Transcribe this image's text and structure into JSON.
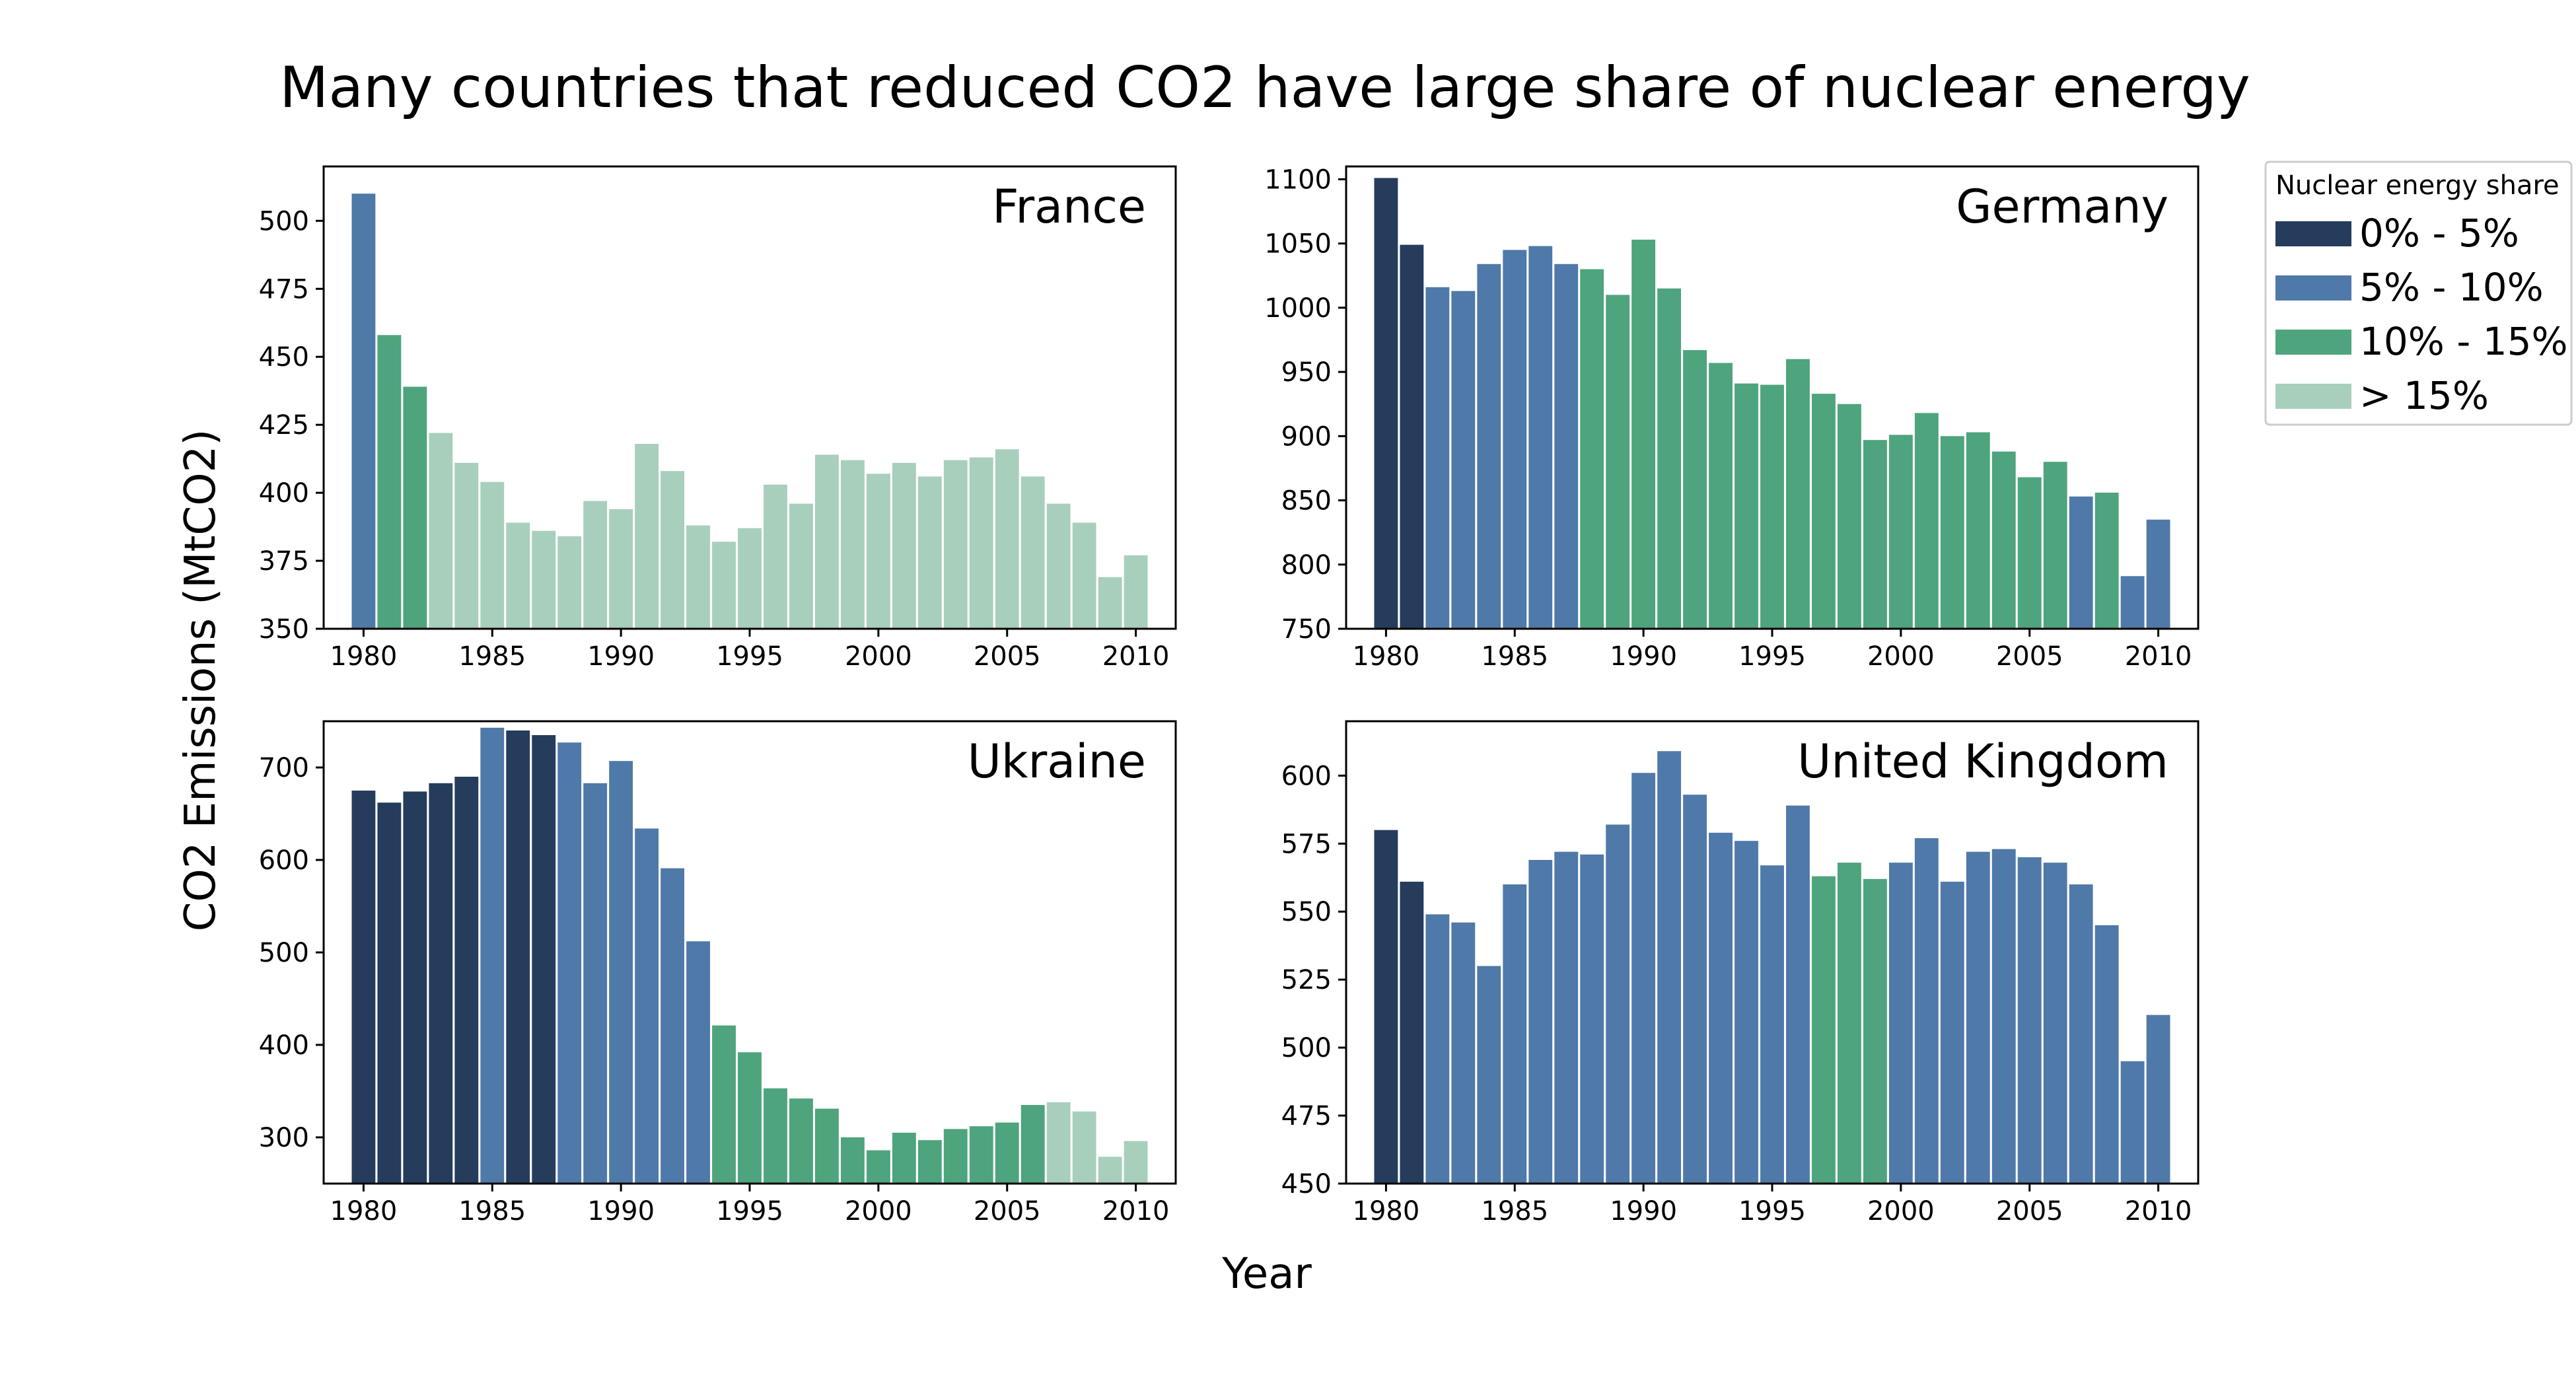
{
  "figure": {
    "title": "Many countries that reduced CO2 have large share of nuclear energy",
    "xlabel": "Year",
    "ylabel": "CO2 Emissions (MtCO2)"
  },
  "legend": {
    "title": "Nuclear energy share",
    "entries": [
      {
        "label": "0% - 5%",
        "color": "#253c5c"
      },
      {
        "label": "5% - 10%",
        "color": "#4f79a8"
      },
      {
        "label": "10% - 15%",
        "color": "#4ea47c"
      },
      {
        "label": "> 15%",
        "color": "#a8cfbc"
      }
    ]
  },
  "chart_data": [
    {
      "type": "bar",
      "title": "France",
      "xlabel": "Year",
      "ylabel": "CO2 Emissions (MtCO2)",
      "ylim": [
        350,
        520
      ],
      "yticks": [
        350,
        375,
        400,
        425,
        450,
        475,
        500
      ],
      "xticks": [
        1980,
        1985,
        1990,
        1995,
        2000,
        2005,
        2010
      ],
      "categories": [
        1980,
        1981,
        1982,
        1983,
        1984,
        1985,
        1986,
        1987,
        1988,
        1989,
        1990,
        1991,
        1992,
        1993,
        1994,
        1995,
        1996,
        1997,
        1998,
        1999,
        2000,
        2001,
        2002,
        2003,
        2004,
        2005,
        2006,
        2007,
        2008,
        2009,
        2010
      ],
      "values": [
        510,
        458,
        439,
        422,
        411,
        404,
        389,
        386,
        384,
        397,
        394,
        418,
        408,
        388,
        382,
        387,
        403,
        396,
        414,
        412,
        407,
        411,
        406,
        412,
        413,
        416,
        406,
        396,
        389,
        369,
        377
      ],
      "share_class": [
        1,
        2,
        2,
        3,
        3,
        3,
        3,
        3,
        3,
        3,
        3,
        3,
        3,
        3,
        3,
        3,
        3,
        3,
        3,
        3,
        3,
        3,
        3,
        3,
        3,
        3,
        3,
        3,
        3,
        3,
        3
      ]
    },
    {
      "type": "bar",
      "title": "Germany",
      "xlabel": "Year",
      "ylabel": "CO2 Emissions (MtCO2)",
      "ylim": [
        750,
        1110
      ],
      "yticks": [
        750,
        800,
        850,
        900,
        950,
        1000,
        1050,
        1100
      ],
      "xticks": [
        1980,
        1985,
        1990,
        1995,
        2000,
        2005,
        2010
      ],
      "categories": [
        1980,
        1981,
        1982,
        1983,
        1984,
        1985,
        1986,
        1987,
        1988,
        1989,
        1990,
        1991,
        1992,
        1993,
        1994,
        1995,
        1996,
        1997,
        1998,
        1999,
        2000,
        2001,
        2002,
        2003,
        2004,
        2005,
        2006,
        2007,
        2008,
        2009,
        2010
      ],
      "values": [
        1101,
        1049,
        1016,
        1013,
        1034,
        1045,
        1048,
        1034,
        1030,
        1010,
        1053,
        1015,
        967,
        957,
        941,
        940,
        960,
        933,
        925,
        897,
        901,
        918,
        900,
        903,
        888,
        868,
        880,
        853,
        856,
        791,
        835
      ],
      "share_class": [
        0,
        0,
        1,
        1,
        1,
        1,
        1,
        1,
        2,
        2,
        2,
        2,
        2,
        2,
        2,
        2,
        2,
        2,
        2,
        2,
        2,
        2,
        2,
        2,
        2,
        2,
        2,
        1,
        2,
        1,
        1
      ]
    },
    {
      "type": "bar",
      "title": "Ukraine",
      "xlabel": "Year",
      "ylabel": "CO2 Emissions (MtCO2)",
      "ylim": [
        250,
        750
      ],
      "yticks": [
        300,
        400,
        500,
        600,
        700
      ],
      "xticks": [
        1980,
        1985,
        1990,
        1995,
        2000,
        2005,
        2010
      ],
      "categories": [
        1980,
        1981,
        1982,
        1983,
        1984,
        1985,
        1986,
        1987,
        1988,
        1989,
        1990,
        1991,
        1992,
        1993,
        1994,
        1995,
        1996,
        1997,
        1998,
        1999,
        2000,
        2001,
        2002,
        2003,
        2004,
        2005,
        2006,
        2007,
        2008,
        2009,
        2010
      ],
      "values": [
        675,
        662,
        674,
        683,
        690,
        743,
        740,
        735,
        727,
        683,
        707,
        634,
        591,
        512,
        421,
        392,
        353,
        342,
        331,
        300,
        286,
        305,
        297,
        309,
        312,
        316,
        335,
        338,
        328,
        279,
        296
      ],
      "share_class": [
        0,
        0,
        0,
        0,
        0,
        1,
        0,
        0,
        1,
        1,
        1,
        1,
        1,
        1,
        2,
        2,
        2,
        2,
        2,
        2,
        2,
        2,
        2,
        2,
        2,
        2,
        2,
        3,
        3,
        3,
        3
      ]
    },
    {
      "type": "bar",
      "title": "United Kingdom",
      "xlabel": "Year",
      "ylabel": "CO2 Emissions (MtCO2)",
      "ylim": [
        450,
        620
      ],
      "yticks": [
        450,
        475,
        500,
        525,
        550,
        575,
        600
      ],
      "xticks": [
        1980,
        1985,
        1990,
        1995,
        2000,
        2005,
        2010
      ],
      "categories": [
        1980,
        1981,
        1982,
        1983,
        1984,
        1985,
        1986,
        1987,
        1988,
        1989,
        1990,
        1991,
        1992,
        1993,
        1994,
        1995,
        1996,
        1997,
        1998,
        1999,
        2000,
        2001,
        2002,
        2003,
        2004,
        2005,
        2006,
        2007,
        2008,
        2009,
        2010
      ],
      "values": [
        580,
        561,
        549,
        546,
        530,
        560,
        569,
        572,
        571,
        582,
        601,
        609,
        593,
        579,
        576,
        567,
        589,
        563,
        568,
        562,
        568,
        577,
        561,
        572,
        573,
        570,
        568,
        560,
        545,
        495,
        512
      ],
      "share_class": [
        0,
        0,
        1,
        1,
        1,
        1,
        1,
        1,
        1,
        1,
        1,
        1,
        1,
        1,
        1,
        1,
        1,
        2,
        2,
        2,
        1,
        1,
        1,
        1,
        1,
        1,
        1,
        1,
        1,
        1,
        1
      ]
    }
  ]
}
